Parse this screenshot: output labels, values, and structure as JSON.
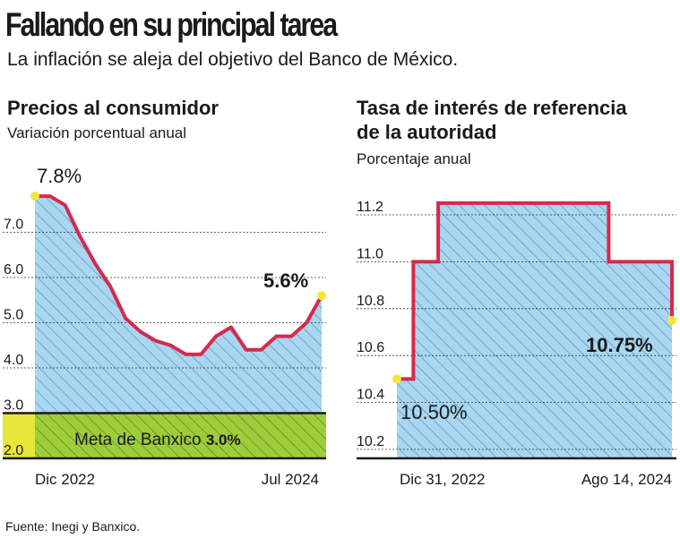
{
  "header": {
    "title": "Fallando en su principal tarea",
    "subtitle": "La inflación se aleja del objetivo del Banco de México."
  },
  "source": "Fuente: Inegi y Banxico.",
  "colors": {
    "line": "#d62a4a",
    "fill": "#a9d6f0",
    "hatch": "#5a8fb0",
    "target_fill": "#9fcd3a",
    "target_side": "#e8e63a",
    "endpoint": "#f3e53a"
  },
  "chart_data": [
    {
      "type": "area",
      "title": "Precios al consumidor",
      "subtitle": "Variación porcentual anual",
      "y_ticks": [
        "7.0",
        "6.0",
        "5.0",
        "4.0",
        "3.0",
        "2.0"
      ],
      "ylim": [
        2.0,
        7.9
      ],
      "x_labels": [
        "Dic 2022",
        "Jul 2024"
      ],
      "values": [
        7.8,
        7.8,
        7.6,
        6.9,
        6.3,
        5.8,
        5.1,
        4.8,
        4.6,
        4.5,
        4.3,
        4.3,
        4.7,
        4.9,
        4.4,
        4.4,
        4.7,
        4.7,
        5.0,
        5.6
      ],
      "annotations": {
        "start": "7.8%",
        "end": "5.6%"
      },
      "target": {
        "label": "Meta de Banxico",
        "value_label": "3.0%",
        "from": 2.0,
        "to": 3.0
      },
      "grid": true
    },
    {
      "type": "area",
      "title_line1": "Tasa de interés de referencia",
      "title_line2": "de la autoridad",
      "subtitle": "Porcentaje anual",
      "y_ticks": [
        "11.2",
        "11.0",
        "10.8",
        "10.6",
        "10.4",
        "10.2"
      ],
      "ylim": [
        10.2,
        11.2
      ],
      "x_labels": [
        "Dic 31, 2022",
        "Ago 14, 2024"
      ],
      "steps": [
        {
          "x": 0.0,
          "y": 10.5
        },
        {
          "x": 0.06,
          "y": 10.5
        },
        {
          "x": 0.06,
          "y": 11.0
        },
        {
          "x": 0.15,
          "y": 11.0
        },
        {
          "x": 0.15,
          "y": 11.25
        },
        {
          "x": 0.77,
          "y": 11.25
        },
        {
          "x": 0.77,
          "y": 11.0
        },
        {
          "x": 1.0,
          "y": 11.0
        },
        {
          "x": 1.0,
          "y": 10.75
        }
      ],
      "annotations": {
        "start": "10.50%",
        "end": "10.75%"
      },
      "grid": true
    }
  ]
}
